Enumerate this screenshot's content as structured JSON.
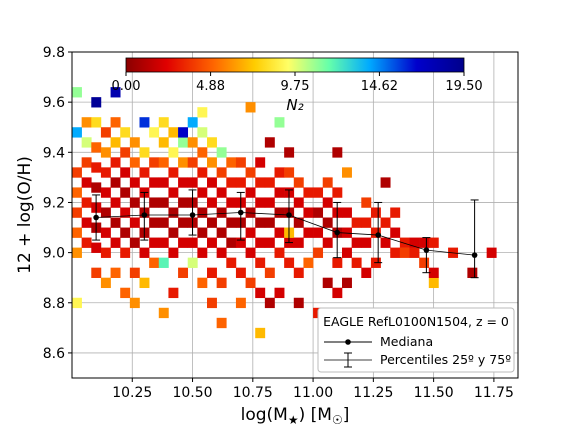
{
  "chart_data": {
    "type": "heatmap",
    "xlabel_main": "log(M",
    "xlabel_sub": "★",
    "xlabel_rest": ") [M",
    "xlabel_sun_sub": "☉",
    "xlabel_end": "]",
    "ylabel": "12 + log(O/H)",
    "xlim": [
      10.0,
      11.85
    ],
    "ylim": [
      8.5,
      9.8
    ],
    "xticks": [
      "10.25",
      "10.50",
      "10.75",
      "11.00",
      "11.25",
      "11.50",
      "11.75"
    ],
    "yticks": [
      "8.6",
      "8.8",
      "9.0",
      "9.2",
      "9.4",
      "9.6",
      "9.8"
    ],
    "grid": true,
    "colorbar": {
      "label": "N₂",
      "ticks": [
        "0.00",
        "4.88",
        "9.75",
        "14.62",
        "19.50"
      ],
      "vmin": 0,
      "vmax": 19.5,
      "colormap": "jet-to-red",
      "colors": [
        "#8b0000",
        "#e00000",
        "#ff6600",
        "#ffcc00",
        "#ffff66",
        "#66ffaa",
        "#00aaff",
        "#0000cc",
        "#00008b"
      ]
    },
    "median": {
      "name": "Mediana",
      "x": [
        10.1,
        10.3,
        10.5,
        10.7,
        10.9,
        11.1,
        11.27,
        11.47,
        11.67
      ],
      "y": [
        9.14,
        9.15,
        9.15,
        9.16,
        9.15,
        9.08,
        9.07,
        9.01,
        8.99
      ],
      "p25": [
        9.05,
        9.05,
        9.07,
        9.05,
        9.04,
        8.98,
        8.96,
        8.92,
        8.9
      ],
      "p75": [
        9.23,
        9.24,
        9.25,
        9.24,
        9.25,
        9.2,
        9.2,
        9.06,
        9.21
      ]
    },
    "legend": {
      "title": "EAGLE RefL0100N1504, z = 0",
      "entries": [
        "Mediana",
        "Percentiles 25º y 75º"
      ],
      "placement": "lower-right"
    },
    "bin_x_width": 0.04,
    "bin_y_height": 0.04,
    "cells": [
      [
        10.0,
        8.78,
        9
      ],
      [
        10.0,
        8.98,
        6
      ],
      [
        10.0,
        9.06,
        5
      ],
      [
        10.0,
        9.14,
        4
      ],
      [
        10.0,
        9.22,
        5
      ],
      [
        10.0,
        9.3,
        4
      ],
      [
        10.0,
        9.46,
        14
      ],
      [
        10.0,
        9.62,
        11
      ],
      [
        10.04,
        9.02,
        3
      ],
      [
        10.04,
        9.1,
        2
      ],
      [
        10.04,
        9.18,
        3
      ],
      [
        10.04,
        9.26,
        2
      ],
      [
        10.04,
        9.34,
        4
      ],
      [
        10.04,
        9.42,
        10
      ],
      [
        10.04,
        9.5,
        6
      ],
      [
        10.08,
        8.9,
        4
      ],
      [
        10.08,
        9.0,
        2
      ],
      [
        10.08,
        9.08,
        1
      ],
      [
        10.08,
        9.16,
        2
      ],
      [
        10.08,
        9.24,
        1
      ],
      [
        10.08,
        9.32,
        3
      ],
      [
        10.08,
        9.4,
        5
      ],
      [
        10.08,
        9.5,
        8
      ],
      [
        10.08,
        9.58,
        19
      ],
      [
        10.12,
        8.86,
        6
      ],
      [
        10.12,
        8.98,
        3
      ],
      [
        10.12,
        9.06,
        2
      ],
      [
        10.12,
        9.14,
        1
      ],
      [
        10.12,
        9.22,
        2
      ],
      [
        10.12,
        9.3,
        3
      ],
      [
        10.12,
        9.38,
        6
      ],
      [
        10.12,
        9.46,
        4
      ],
      [
        10.16,
        8.9,
        5
      ],
      [
        10.16,
        9.02,
        2
      ],
      [
        10.16,
        9.1,
        1
      ],
      [
        10.16,
        9.18,
        2
      ],
      [
        10.16,
        9.26,
        1
      ],
      [
        10.16,
        9.34,
        3
      ],
      [
        10.16,
        9.42,
        7
      ],
      [
        10.16,
        9.5,
        5
      ],
      [
        10.16,
        9.62,
        18
      ],
      [
        10.2,
        8.82,
        5
      ],
      [
        10.2,
        8.98,
        3
      ],
      [
        10.2,
        9.06,
        1
      ],
      [
        10.2,
        9.14,
        2
      ],
      [
        10.2,
        9.22,
        1
      ],
      [
        10.2,
        9.3,
        2
      ],
      [
        10.2,
        9.38,
        4
      ],
      [
        10.2,
        9.46,
        8
      ],
      [
        10.24,
        8.78,
        6
      ],
      [
        10.24,
        8.9,
        4
      ],
      [
        10.24,
        9.02,
        1
      ],
      [
        10.24,
        9.1,
        2
      ],
      [
        10.24,
        9.18,
        1
      ],
      [
        10.24,
        9.26,
        2
      ],
      [
        10.24,
        9.34,
        5
      ],
      [
        10.24,
        9.42,
        6
      ],
      [
        10.28,
        8.86,
        7
      ],
      [
        10.28,
        8.98,
        2
      ],
      [
        10.28,
        9.06,
        1
      ],
      [
        10.28,
        9.14,
        1
      ],
      [
        10.28,
        9.22,
        2
      ],
      [
        10.28,
        9.3,
        3
      ],
      [
        10.28,
        9.38,
        8
      ],
      [
        10.28,
        9.5,
        16
      ],
      [
        10.32,
        8.94,
        5
      ],
      [
        10.32,
        9.02,
        2
      ],
      [
        10.32,
        9.1,
        1
      ],
      [
        10.32,
        9.18,
        1
      ],
      [
        10.32,
        9.26,
        2
      ],
      [
        10.32,
        9.34,
        4
      ],
      [
        10.32,
        9.46,
        9
      ],
      [
        10.36,
        8.74,
        6
      ],
      [
        10.36,
        8.94,
        12
      ],
      [
        10.36,
        9.02,
        2
      ],
      [
        10.36,
        9.1,
        1
      ],
      [
        10.36,
        9.18,
        1
      ],
      [
        10.36,
        9.26,
        2
      ],
      [
        10.36,
        9.34,
        5
      ],
      [
        10.36,
        9.42,
        7
      ],
      [
        10.36,
        9.5,
        8
      ],
      [
        10.4,
        8.82,
        3
      ],
      [
        10.4,
        8.98,
        2
      ],
      [
        10.4,
        9.06,
        1
      ],
      [
        10.4,
        9.14,
        1
      ],
      [
        10.4,
        9.22,
        2
      ],
      [
        10.4,
        9.3,
        3
      ],
      [
        10.4,
        9.38,
        9
      ],
      [
        10.4,
        9.46,
        7
      ],
      [
        10.44,
        8.9,
        4
      ],
      [
        10.44,
        9.02,
        2
      ],
      [
        10.44,
        9.1,
        1
      ],
      [
        10.44,
        9.18,
        1
      ],
      [
        10.44,
        9.26,
        2
      ],
      [
        10.44,
        9.34,
        6
      ],
      [
        10.44,
        9.42,
        11
      ],
      [
        10.44,
        9.46,
        17
      ],
      [
        10.48,
        8.94,
        10
      ],
      [
        10.48,
        9.02,
        2
      ],
      [
        10.48,
        9.1,
        1
      ],
      [
        10.48,
        9.18,
        1
      ],
      [
        10.48,
        9.26,
        2
      ],
      [
        10.48,
        9.34,
        4
      ],
      [
        10.48,
        9.42,
        6
      ],
      [
        10.48,
        9.5,
        14
      ],
      [
        10.52,
        8.86,
        5
      ],
      [
        10.52,
        8.98,
        2
      ],
      [
        10.52,
        9.06,
        1
      ],
      [
        10.52,
        9.14,
        1
      ],
      [
        10.52,
        9.22,
        2
      ],
      [
        10.52,
        9.3,
        3
      ],
      [
        10.52,
        9.38,
        5
      ],
      [
        10.52,
        9.46,
        10
      ],
      [
        10.52,
        9.54,
        9
      ],
      [
        10.56,
        8.78,
        4
      ],
      [
        10.56,
        8.9,
        3
      ],
      [
        10.56,
        9.02,
        2
      ],
      [
        10.56,
        9.1,
        1
      ],
      [
        10.56,
        9.18,
        2
      ],
      [
        10.56,
        9.26,
        2
      ],
      [
        10.56,
        9.34,
        6
      ],
      [
        10.56,
        9.42,
        8
      ],
      [
        10.6,
        8.7,
        5
      ],
      [
        10.6,
        8.86,
        4
      ],
      [
        10.6,
        8.98,
        2
      ],
      [
        10.6,
        9.06,
        1
      ],
      [
        10.6,
        9.14,
        1
      ],
      [
        10.6,
        9.22,
        2
      ],
      [
        10.6,
        9.3,
        4
      ],
      [
        10.6,
        9.38,
        11
      ],
      [
        10.64,
        8.94,
        3
      ],
      [
        10.64,
        9.02,
        1
      ],
      [
        10.64,
        9.1,
        1
      ],
      [
        10.64,
        9.18,
        2
      ],
      [
        10.64,
        9.26,
        3
      ],
      [
        10.64,
        9.34,
        5
      ],
      [
        10.68,
        8.78,
        5
      ],
      [
        10.68,
        8.9,
        3
      ],
      [
        10.68,
        9.02,
        2
      ],
      [
        10.68,
        9.1,
        1
      ],
      [
        10.68,
        9.18,
        2
      ],
      [
        10.68,
        9.26,
        3
      ],
      [
        10.68,
        9.34,
        4
      ],
      [
        10.72,
        8.86,
        4
      ],
      [
        10.72,
        8.98,
        2
      ],
      [
        10.72,
        9.06,
        2
      ],
      [
        10.72,
        9.14,
        1
      ],
      [
        10.72,
        9.22,
        2
      ],
      [
        10.72,
        9.3,
        4
      ],
      [
        10.72,
        9.56,
        6
      ],
      [
        10.76,
        8.66,
        7
      ],
      [
        10.76,
        8.82,
        2
      ],
      [
        10.76,
        8.94,
        3
      ],
      [
        10.76,
        9.02,
        2
      ],
      [
        10.76,
        9.1,
        1
      ],
      [
        10.76,
        9.18,
        2
      ],
      [
        10.76,
        9.26,
        3
      ],
      [
        10.76,
        9.34,
        2
      ],
      [
        10.8,
        8.78,
        1
      ],
      [
        10.8,
        8.9,
        4
      ],
      [
        10.8,
        9.02,
        2
      ],
      [
        10.8,
        9.1,
        1
      ],
      [
        10.8,
        9.18,
        2
      ],
      [
        10.8,
        9.26,
        3
      ],
      [
        10.8,
        9.42,
        1
      ],
      [
        10.84,
        8.82,
        2
      ],
      [
        10.84,
        8.98,
        3
      ],
      [
        10.84,
        9.06,
        2
      ],
      [
        10.84,
        9.14,
        1
      ],
      [
        10.84,
        9.22,
        2
      ],
      [
        10.84,
        9.3,
        3
      ],
      [
        10.84,
        9.5,
        11
      ],
      [
        10.88,
        8.94,
        3
      ],
      [
        10.88,
        9.02,
        2
      ],
      [
        10.88,
        9.06,
        7
      ],
      [
        10.88,
        9.14,
        1
      ],
      [
        10.88,
        9.22,
        2
      ],
      [
        10.88,
        9.3,
        4
      ],
      [
        10.88,
        9.38,
        1
      ],
      [
        10.92,
        8.78,
        1
      ],
      [
        10.92,
        8.9,
        3
      ],
      [
        10.92,
        9.02,
        2
      ],
      [
        10.92,
        9.1,
        1
      ],
      [
        10.92,
        9.18,
        2
      ],
      [
        10.92,
        9.26,
        4
      ],
      [
        10.96,
        8.94,
        5
      ],
      [
        10.96,
        9.06,
        2
      ],
      [
        10.96,
        9.14,
        2
      ],
      [
        10.96,
        9.22,
        3
      ],
      [
        11.0,
        8.74,
        3
      ],
      [
        11.0,
        8.98,
        4
      ],
      [
        11.0,
        9.06,
        2
      ],
      [
        11.0,
        9.14,
        1
      ],
      [
        11.0,
        9.22,
        3
      ],
      [
        11.04,
        8.74,
        1
      ],
      [
        11.04,
        8.86,
        1
      ],
      [
        11.04,
        9.02,
        2
      ],
      [
        11.04,
        9.1,
        1
      ],
      [
        11.04,
        9.18,
        2
      ],
      [
        11.04,
        9.26,
        4
      ],
      [
        11.08,
        8.82,
        2
      ],
      [
        11.08,
        8.94,
        3
      ],
      [
        11.08,
        9.06,
        1
      ],
      [
        11.08,
        9.14,
        2
      ],
      [
        11.08,
        9.22,
        3
      ],
      [
        11.08,
        9.38,
        1
      ],
      [
        11.12,
        8.86,
        1
      ],
      [
        11.12,
        8.98,
        2
      ],
      [
        11.12,
        9.06,
        2
      ],
      [
        11.12,
        9.14,
        2
      ],
      [
        11.12,
        9.3,
        6
      ],
      [
        11.16,
        8.94,
        3
      ],
      [
        11.16,
        9.02,
        2
      ],
      [
        11.16,
        9.1,
        3
      ],
      [
        11.2,
        8.9,
        2
      ],
      [
        11.2,
        9.02,
        2
      ],
      [
        11.2,
        9.1,
        3
      ],
      [
        11.2,
        9.18,
        4
      ],
      [
        11.24,
        8.94,
        3
      ],
      [
        11.24,
        9.06,
        3
      ],
      [
        11.24,
        9.14,
        3
      ],
      [
        11.28,
        9.02,
        2
      ],
      [
        11.28,
        9.1,
        3
      ],
      [
        11.28,
        9.26,
        1
      ],
      [
        11.32,
        8.98,
        3
      ],
      [
        11.32,
        9.06,
        2
      ],
      [
        11.32,
        9.14,
        3
      ],
      [
        11.36,
        9.02,
        3
      ],
      [
        11.36,
        8.98,
        4
      ],
      [
        11.4,
        9.02,
        2
      ],
      [
        11.4,
        8.98,
        3
      ],
      [
        11.44,
        8.94,
        4
      ],
      [
        11.44,
        9.02,
        2
      ],
      [
        11.48,
        8.86,
        7
      ],
      [
        11.48,
        8.9,
        2
      ],
      [
        11.48,
        9.02,
        3
      ],
      [
        11.56,
        8.98,
        3
      ],
      [
        11.64,
        8.9,
        1
      ],
      [
        11.72,
        8.98,
        2
      ]
    ]
  }
}
